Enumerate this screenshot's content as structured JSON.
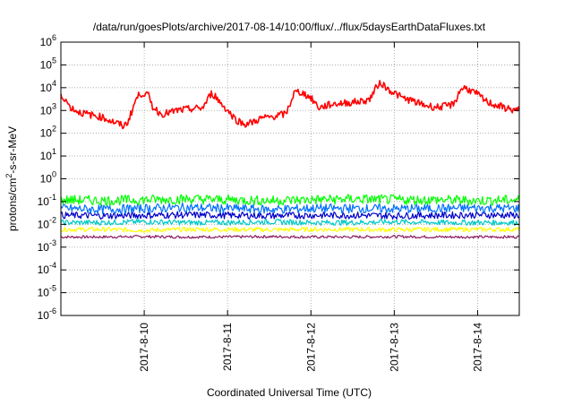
{
  "chart_data": {
    "type": "line",
    "title": "/data/run/goesPlots/archive/2017-08-14/10:00/flux/../flux/5daysEarthDataFluxes.txt",
    "xlabel": "Coordinated Universal Time (UTC)",
    "ylabel": "protons/cm²-s-sr-MeV",
    "ylabel_parts": [
      "protons/cm",
      "2",
      "-s-sr-MeV"
    ],
    "yscale": "log",
    "ylim": [
      1e-06,
      1000000.0
    ],
    "xlim": [
      0,
      5.5
    ],
    "grid": true,
    "legend": "none",
    "y_ticks": [
      {
        "exp": -6,
        "base": "10",
        "sup": "-6"
      },
      {
        "exp": -5,
        "base": "10",
        "sup": "-5"
      },
      {
        "exp": -4,
        "base": "10",
        "sup": "-4"
      },
      {
        "exp": -3,
        "base": "10",
        "sup": "-3"
      },
      {
        "exp": -2,
        "base": "10",
        "sup": "-2"
      },
      {
        "exp": -1,
        "base": "10",
        "sup": "-1"
      },
      {
        "exp": 0,
        "base": "10",
        "sup": "0"
      },
      {
        "exp": 1,
        "base": "10",
        "sup": "1"
      },
      {
        "exp": 2,
        "base": "10",
        "sup": "2"
      },
      {
        "exp": 3,
        "base": "10",
        "sup": "3"
      },
      {
        "exp": 4,
        "base": "10",
        "sup": "4"
      },
      {
        "exp": 5,
        "base": "10",
        "sup": "5"
      },
      {
        "exp": 6,
        "base": "10",
        "sup": "6"
      }
    ],
    "x_ticks": [
      {
        "x": 1,
        "label": "2017-8-10"
      },
      {
        "x": 2,
        "label": "2017-8-11"
      },
      {
        "x": 3,
        "label": "2017-8-12"
      },
      {
        "x": 4,
        "label": "2017-8-13"
      },
      {
        "x": 5,
        "label": "2017-8-14"
      }
    ],
    "series": [
      {
        "color": "#ff0000",
        "x": [
          0,
          0.05,
          0.1,
          0.2,
          0.3,
          0.4,
          0.5,
          0.6,
          0.7,
          0.75,
          0.8,
          0.85,
          0.9,
          0.95,
          1.0,
          1.05,
          1.1,
          1.2,
          1.3,
          1.4,
          1.5,
          1.6,
          1.7,
          1.75,
          1.8,
          1.85,
          1.9,
          2.0,
          2.1,
          2.2,
          2.3,
          2.4,
          2.5,
          2.6,
          2.7,
          2.75,
          2.8,
          2.85,
          2.9,
          3.0,
          3.1,
          3.2,
          3.3,
          3.4,
          3.5,
          3.6,
          3.7,
          3.75,
          3.8,
          3.85,
          3.9,
          4.0,
          4.1,
          4.2,
          4.3,
          4.4,
          4.5,
          4.6,
          4.7,
          4.75,
          4.8,
          4.85,
          4.9,
          5.0,
          5.1,
          5.2,
          5.3,
          5.4,
          5.5
        ],
        "values": [
          4000,
          3500,
          1500,
          900,
          700,
          600,
          500,
          350,
          250,
          200,
          300,
          900,
          3000,
          5500,
          5500,
          4500,
          1500,
          700,
          800,
          1000,
          1100,
          1200,
          1300,
          2500,
          5500,
          4500,
          2500,
          1000,
          400,
          250,
          300,
          450,
          500,
          600,
          700,
          2000,
          6000,
          6500,
          6000,
          3500,
          1300,
          1700,
          2000,
          2100,
          2300,
          2500,
          3000,
          6000,
          13000,
          16000,
          10000,
          6000,
          3500,
          2800,
          2000,
          1600,
          1400,
          1500,
          1800,
          3500,
          9000,
          10000,
          8000,
          5000,
          2500,
          1800,
          1400,
          1100,
          1000
        ]
      },
      {
        "color": "#00ff00",
        "x": [
          0,
          0.5,
          1,
          1.5,
          2,
          2.5,
          3,
          3.5,
          4,
          4.5,
          5,
          5.5
        ],
        "values": [
          0.12,
          0.11,
          0.12,
          0.13,
          0.12,
          0.11,
          0.12,
          0.13,
          0.12,
          0.12,
          0.11,
          0.12
        ]
      },
      {
        "color": "#0070ff",
        "x": [
          0,
          0.5,
          1,
          1.5,
          2,
          2.5,
          3,
          3.5,
          4,
          4.5,
          5,
          5.5
        ],
        "values": [
          0.05,
          0.045,
          0.05,
          0.055,
          0.05,
          0.045,
          0.05,
          0.05,
          0.048,
          0.05,
          0.052,
          0.05
        ]
      },
      {
        "color": "#0000c8",
        "x": [
          0,
          0.5,
          1,
          1.5,
          2,
          2.5,
          3,
          3.5,
          4,
          4.5,
          5,
          5.5
        ],
        "values": [
          0.025,
          0.024,
          0.025,
          0.026,
          0.025,
          0.024,
          0.025,
          0.025,
          0.024,
          0.025,
          0.026,
          0.025
        ]
      },
      {
        "color": "#00c8c8",
        "x": [
          0,
          0.5,
          1,
          1.5,
          2,
          2.5,
          3,
          3.5,
          4,
          4.5,
          5,
          5.5
        ],
        "values": [
          0.012,
          0.012,
          0.013,
          0.012,
          0.012,
          0.013,
          0.012,
          0.012,
          0.013,
          0.012,
          0.012,
          0.012
        ]
      },
      {
        "color": "#ffff00",
        "x": [
          0,
          0.5,
          1,
          1.5,
          2,
          2.5,
          3,
          3.5,
          4,
          4.5,
          5,
          5.5
        ],
        "values": [
          0.006,
          0.006,
          0.0055,
          0.006,
          0.006,
          0.0058,
          0.006,
          0.006,
          0.0058,
          0.006,
          0.006,
          0.006
        ]
      },
      {
        "color": "#8b1c62",
        "x": [
          0,
          0.5,
          1,
          1.5,
          2,
          2.5,
          3,
          3.5,
          4,
          4.5,
          5,
          5.5
        ],
        "values": [
          0.0028,
          0.0028,
          0.0029,
          0.0028,
          0.0028,
          0.0029,
          0.0028,
          0.0028,
          0.0029,
          0.0028,
          0.0028,
          0.0028
        ]
      }
    ]
  }
}
